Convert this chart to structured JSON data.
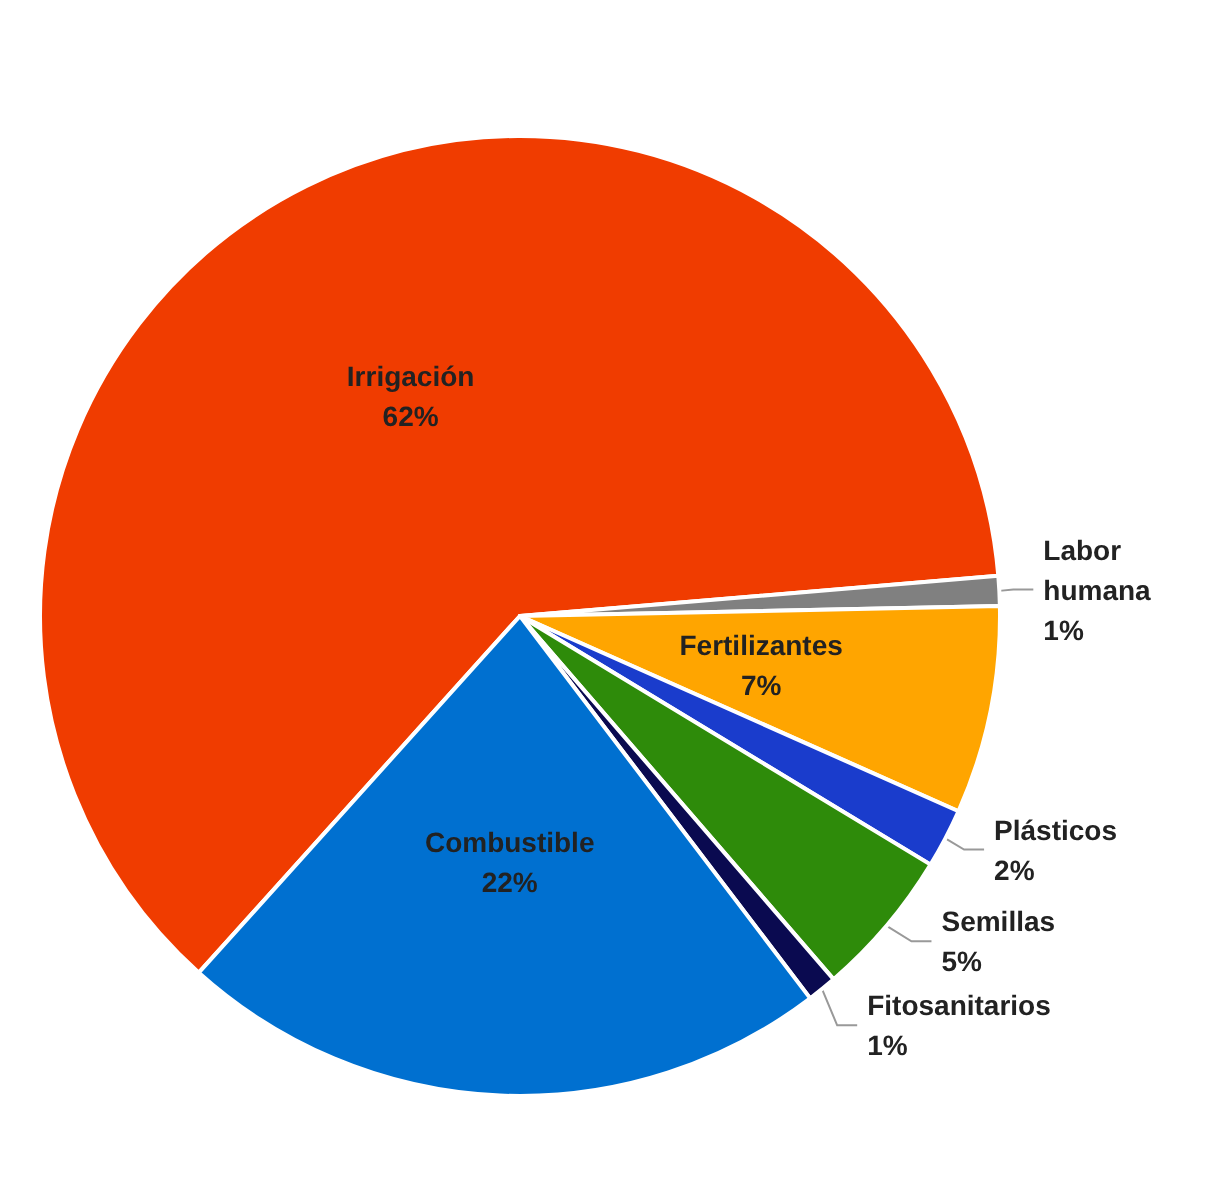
{
  "chart_data": {
    "type": "pie",
    "categories": [
      "Irrigación",
      "Labor humana",
      "Fertilizantes",
      "Plásticos",
      "Semillas",
      "Fitosanitarios",
      "Combustible"
    ],
    "values": [
      62,
      1,
      7,
      2,
      5,
      1,
      22
    ],
    "value_labels": [
      "62%",
      "1%",
      "7%",
      "2%",
      "5%",
      "1%",
      "22%"
    ],
    "colors": [
      "#f03c00",
      "#808080",
      "#ffa500",
      "#1a3ccc",
      "#2e8b0a",
      "#0a0a50",
      "#0070d0"
    ],
    "legend": false
  }
}
